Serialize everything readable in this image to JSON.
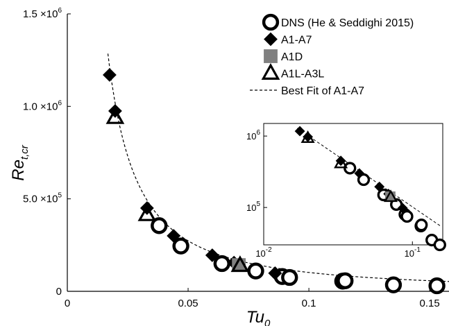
{
  "chart_data": [
    {
      "type": "scatter",
      "xlabel": {
        "main": "Tu",
        "sub": "0"
      },
      "ylabel": {
        "main": "Re",
        "sub": "t,cr"
      },
      "xlim": [
        0,
        0.158
      ],
      "ylim": [
        0,
        1500000
      ],
      "x_ticks": [
        {
          "value": 0,
          "label": "0"
        },
        {
          "value": 0.05,
          "label": "0.05"
        },
        {
          "value": 0.1,
          "label": "0.1"
        },
        {
          "value": 0.15,
          "label": "0.15"
        }
      ],
      "y_ticks": [
        {
          "value": 0,
          "mantissa": "0",
          "exp": ""
        },
        {
          "value": 500000,
          "mantissa": "5.0 ×10",
          "exp": "5"
        },
        {
          "value": 1000000,
          "mantissa": "1.0 ×10",
          "exp": "6"
        },
        {
          "value": 1500000,
          "mantissa": "1.5 ×10",
          "exp": "6"
        }
      ],
      "legend_position": "top-right",
      "series": [
        {
          "name": "DNS (He & Seddighi 2015)",
          "marker": "open-circle",
          "x": [
            0.038,
            0.047,
            0.064,
            0.078,
            0.089,
            0.092,
            0.114,
            0.115,
            0.135,
            0.153
          ],
          "y": [
            355000,
            245000,
            150000,
            110000,
            80000,
            75000,
            55000,
            57000,
            35000,
            30000
          ]
        },
        {
          "name": "A1-A7",
          "marker": "filled-diamond",
          "x": [
            0.0175,
            0.0198,
            0.033,
            0.044,
            0.06,
            0.069,
            0.086
          ],
          "y": [
            1170000,
            975000,
            450000,
            300000,
            195000,
            155000,
            98000
          ]
        },
        {
          "name": "A1D",
          "marker": "gray-square",
          "x": [
            0.071
          ],
          "y": [
            142000
          ]
        },
        {
          "name": "A1L-A3L",
          "marker": "open-triangle",
          "x": [
            0.0198,
            0.033,
            0.0715
          ],
          "y": [
            940000,
            415000,
            140000
          ]
        },
        {
          "name": "Best Fit of A1-A7",
          "marker": "dashed-line",
          "fit": {
            "form": "power",
            "coefficient": 3880,
            "exponent": -1.42
          },
          "x_range": [
            0.0168,
            0.158
          ]
        }
      ]
    },
    {
      "type": "scatter",
      "inset": true,
      "scale": "log-log",
      "xlim": [
        0.01,
        0.16
      ],
      "ylim": [
        30000,
        1500000
      ],
      "x_ticks": [
        {
          "value": 0.01,
          "mantissa": "10",
          "exp": "-2"
        },
        {
          "value": 0.1,
          "mantissa": "10",
          "exp": "-1"
        }
      ],
      "y_ticks": [
        {
          "value": 100000,
          "mantissa": "10",
          "exp": "5"
        },
        {
          "value": 1000000,
          "mantissa": "10",
          "exp": "6"
        }
      ],
      "series_same_as_main": true
    }
  ]
}
